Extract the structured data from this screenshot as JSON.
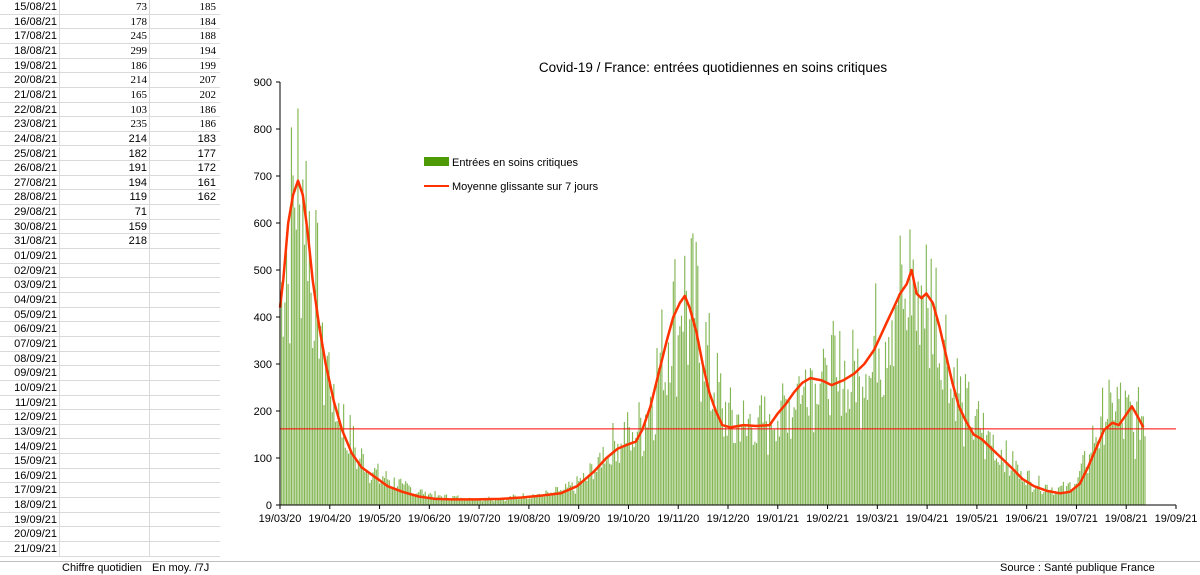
{
  "sheet": {
    "rows": [
      {
        "date": "15/08/21",
        "daily": "73",
        "avg": "185",
        "serif": true
      },
      {
        "date": "16/08/21",
        "daily": "178",
        "avg": "184",
        "serif": true
      },
      {
        "date": "17/08/21",
        "daily": "245",
        "avg": "188",
        "serif": true
      },
      {
        "date": "18/08/21",
        "daily": "299",
        "avg": "194",
        "serif": true
      },
      {
        "date": "19/08/21",
        "daily": "186",
        "avg": "199",
        "serif": true
      },
      {
        "date": "20/08/21",
        "daily": "214",
        "avg": "207",
        "serif": true
      },
      {
        "date": "21/08/21",
        "daily": "165",
        "avg": "202",
        "serif": true
      },
      {
        "date": "22/08/21",
        "daily": "103",
        "avg": "186",
        "serif": true
      },
      {
        "date": "23/08/21",
        "daily": "235",
        "avg": "186",
        "serif": true
      },
      {
        "date": "24/08/21",
        "daily": "214",
        "avg": "183",
        "serif": false
      },
      {
        "date": "25/08/21",
        "daily": "182",
        "avg": "177",
        "serif": false
      },
      {
        "date": "26/08/21",
        "daily": "191",
        "avg": "172",
        "serif": false
      },
      {
        "date": "27/08/21",
        "daily": "194",
        "avg": "161",
        "serif": false
      },
      {
        "date": "28/08/21",
        "daily": "119",
        "avg": "162",
        "serif": false
      },
      {
        "date": "29/08/21",
        "daily": "71",
        "avg": "",
        "serif": false
      },
      {
        "date": "30/08/21",
        "daily": "159",
        "avg": "",
        "serif": false
      },
      {
        "date": "31/08/21",
        "daily": "218",
        "avg": "",
        "serif": false
      },
      {
        "date": "01/09/21",
        "daily": "",
        "avg": "",
        "serif": false
      },
      {
        "date": "02/09/21",
        "daily": "",
        "avg": "",
        "serif": false
      },
      {
        "date": "03/09/21",
        "daily": "",
        "avg": "",
        "serif": false
      },
      {
        "date": "04/09/21",
        "daily": "",
        "avg": "",
        "serif": false
      },
      {
        "date": "05/09/21",
        "daily": "",
        "avg": "",
        "serif": false
      },
      {
        "date": "06/09/21",
        "daily": "",
        "avg": "",
        "serif": false
      },
      {
        "date": "07/09/21",
        "daily": "",
        "avg": "",
        "serif": false
      },
      {
        "date": "08/09/21",
        "daily": "",
        "avg": "",
        "serif": false
      },
      {
        "date": "09/09/21",
        "daily": "",
        "avg": "",
        "serif": false
      },
      {
        "date": "10/09/21",
        "daily": "",
        "avg": "",
        "serif": false
      },
      {
        "date": "11/09/21",
        "daily": "",
        "avg": "",
        "serif": false
      },
      {
        "date": "12/09/21",
        "daily": "",
        "avg": "",
        "serif": false
      },
      {
        "date": "13/09/21",
        "daily": "",
        "avg": "",
        "serif": false
      },
      {
        "date": "14/09/21",
        "daily": "",
        "avg": "",
        "serif": false
      },
      {
        "date": "15/09/21",
        "daily": "",
        "avg": "",
        "serif": false
      },
      {
        "date": "16/09/21",
        "daily": "",
        "avg": "",
        "serif": false
      },
      {
        "date": "17/09/21",
        "daily": "",
        "avg": "",
        "serif": false
      },
      {
        "date": "18/09/21",
        "daily": "",
        "avg": "",
        "serif": false
      },
      {
        "date": "19/09/21",
        "daily": "",
        "avg": "",
        "serif": false
      },
      {
        "date": "20/09/21",
        "daily": "",
        "avg": "",
        "serif": false
      },
      {
        "date": "21/09/21",
        "daily": "",
        "avg": "",
        "serif": false
      }
    ]
  },
  "footer": {
    "col1_label": "Chiffre quotidien",
    "col2_label": "En moy. /7J",
    "source": "Source : Santé publique France"
  },
  "chart_data": {
    "type": "bar",
    "title": "Covid-19 / France: entrées quotidiennes en soins critiques",
    "xlabel": "",
    "ylabel": "",
    "ylim": [
      0,
      900
    ],
    "yticks": [
      "0",
      "100",
      "200",
      "300",
      "400",
      "500",
      "600",
      "700",
      "800",
      "900"
    ],
    "xtick_labels": [
      "19/03/20",
      "19/04/20",
      "19/05/20",
      "19/06/20",
      "19/07/20",
      "19/08/20",
      "19/09/20",
      "19/10/20",
      "19/11/20",
      "19/12/20",
      "19/01/21",
      "19/02/21",
      "19/03/21",
      "19/04/21",
      "19/05/21",
      "19/06/21",
      "19/07/21",
      "19/08/21",
      "19/09/21"
    ],
    "x_domain_days": [
      0,
      549
    ],
    "reference_line": 162,
    "colors": {
      "bars": "#5a9e1a",
      "legend_bar": "#4e9a06",
      "line": "#ff3300",
      "ref": "#ff0000"
    },
    "legend": [
      "Entrées en soins critiques",
      "Moyenne glissante sur 7 jours"
    ],
    "series_bar_keypoints": [
      [
        0,
        420
      ],
      [
        4,
        560
      ],
      [
        8,
        660
      ],
      [
        12,
        720
      ],
      [
        15,
        680
      ],
      [
        18,
        600
      ],
      [
        22,
        480
      ],
      [
        27,
        340
      ],
      [
        33,
        240
      ],
      [
        40,
        170
      ],
      [
        48,
        110
      ],
      [
        58,
        70
      ],
      [
        70,
        50
      ],
      [
        85,
        30
      ],
      [
        100,
        18
      ],
      [
        120,
        14
      ],
      [
        140,
        16
      ],
      [
        150,
        20
      ],
      [
        165,
        25
      ],
      [
        180,
        40
      ],
      [
        190,
        70
      ],
      [
        200,
        120
      ],
      [
        210,
        150
      ],
      [
        218,
        160
      ],
      [
        225,
        200
      ],
      [
        232,
        300
      ],
      [
        240,
        400
      ],
      [
        245,
        450
      ],
      [
        250,
        460
      ],
      [
        256,
        420
      ],
      [
        262,
        320
      ],
      [
        268,
        250
      ],
      [
        275,
        190
      ],
      [
        285,
        180
      ],
      [
        295,
        180
      ],
      [
        305,
        200
      ],
      [
        315,
        240
      ],
      [
        322,
        290
      ],
      [
        330,
        300
      ],
      [
        340,
        290
      ],
      [
        350,
        280
      ],
      [
        358,
        310
      ],
      [
        365,
        360
      ],
      [
        372,
        400
      ],
      [
        380,
        450
      ],
      [
        386,
        490
      ],
      [
        392,
        470
      ],
      [
        398,
        460
      ],
      [
        403,
        420
      ],
      [
        408,
        350
      ],
      [
        414,
        270
      ],
      [
        420,
        210
      ],
      [
        427,
        180
      ],
      [
        434,
        150
      ],
      [
        441,
        120
      ],
      [
        448,
        90
      ],
      [
        455,
        70
      ],
      [
        462,
        50
      ],
      [
        470,
        40
      ],
      [
        478,
        35
      ],
      [
        486,
        45
      ],
      [
        492,
        80
      ],
      [
        498,
        140
      ],
      [
        504,
        190
      ],
      [
        510,
        230
      ],
      [
        516,
        210
      ],
      [
        520,
        190
      ],
      [
        524,
        180
      ],
      [
        530,
        200
      ]
    ],
    "series_line_keypoints": [
      [
        0,
        420
      ],
      [
        2,
        480
      ],
      [
        5,
        600
      ],
      [
        8,
        660
      ],
      [
        11,
        690
      ],
      [
        14,
        660
      ],
      [
        17,
        580
      ],
      [
        20,
        480
      ],
      [
        24,
        380
      ],
      [
        28,
        300
      ],
      [
        33,
        220
      ],
      [
        38,
        160
      ],
      [
        44,
        110
      ],
      [
        50,
        80
      ],
      [
        58,
        60
      ],
      [
        66,
        40
      ],
      [
        75,
        28
      ],
      [
        85,
        18
      ],
      [
        95,
        13
      ],
      [
        105,
        12
      ],
      [
        120,
        12
      ],
      [
        135,
        13
      ],
      [
        148,
        16
      ],
      [
        160,
        20
      ],
      [
        172,
        25
      ],
      [
        182,
        40
      ],
      [
        192,
        70
      ],
      [
        200,
        100
      ],
      [
        207,
        120
      ],
      [
        214,
        130
      ],
      [
        218,
        135
      ],
      [
        222,
        160
      ],
      [
        227,
        210
      ],
      [
        232,
        280
      ],
      [
        237,
        350
      ],
      [
        241,
        400
      ],
      [
        245,
        430
      ],
      [
        248,
        445
      ],
      [
        251,
        420
      ],
      [
        255,
        370
      ],
      [
        259,
        300
      ],
      [
        263,
        240
      ],
      [
        267,
        200
      ],
      [
        271,
        170
      ],
      [
        276,
        165
      ],
      [
        284,
        170
      ],
      [
        292,
        168
      ],
      [
        300,
        170
      ],
      [
        305,
        195
      ],
      [
        310,
        215
      ],
      [
        315,
        240
      ],
      [
        320,
        260
      ],
      [
        325,
        270
      ],
      [
        332,
        265
      ],
      [
        338,
        255
      ],
      [
        345,
        265
      ],
      [
        352,
        280
      ],
      [
        358,
        300
      ],
      [
        364,
        330
      ],
      [
        368,
        360
      ],
      [
        372,
        390
      ],
      [
        376,
        420
      ],
      [
        380,
        450
      ],
      [
        384,
        470
      ],
      [
        387,
        500
      ],
      [
        390,
        450
      ],
      [
        393,
        440
      ],
      [
        396,
        450
      ],
      [
        400,
        430
      ],
      [
        404,
        380
      ],
      [
        408,
        320
      ],
      [
        412,
        260
      ],
      [
        416,
        210
      ],
      [
        420,
        180
      ],
      [
        425,
        150
      ],
      [
        430,
        140
      ],
      [
        436,
        120
      ],
      [
        442,
        100
      ],
      [
        448,
        80
      ],
      [
        455,
        55
      ],
      [
        462,
        40
      ],
      [
        470,
        30
      ],
      [
        478,
        25
      ],
      [
        484,
        28
      ],
      [
        490,
        45
      ],
      [
        495,
        80
      ],
      [
        500,
        120
      ],
      [
        505,
        160
      ],
      [
        510,
        175
      ],
      [
        514,
        170
      ],
      [
        518,
        190
      ],
      [
        522,
        210
      ],
      [
        526,
        185
      ],
      [
        529,
        165
      ]
    ]
  }
}
